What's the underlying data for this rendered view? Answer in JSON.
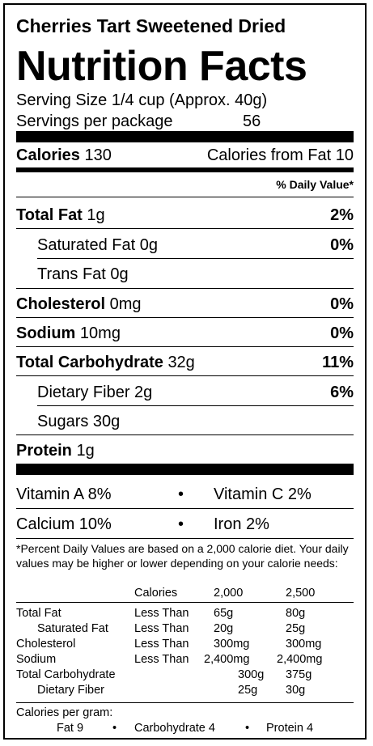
{
  "product_name": "Cherries Tart Sweetened Dried",
  "title": "Nutrition Facts",
  "serving_size": "Serving Size 1/4 cup (Approx. 40g)",
  "servings_label": "Servings per package",
  "servings_value": "56",
  "calories": {
    "label": "Calories",
    "value": "130",
    "from_fat": "Calories from Fat 10"
  },
  "daily_value_header": "% Daily Value*",
  "nutrients": {
    "total_fat": {
      "label": "Total Fat",
      "amount": "1g",
      "dv": "2%"
    },
    "saturated_fat": {
      "label": "Saturated Fat 0g",
      "dv": "0%"
    },
    "trans_fat": {
      "label": "Trans Fat 0g"
    },
    "cholesterol": {
      "label": "Cholesterol",
      "amount": "0mg",
      "dv": "0%"
    },
    "sodium": {
      "label": "Sodium",
      "amount": "10mg",
      "dv": "0%"
    },
    "total_carb": {
      "label": "Total Carbohydrate",
      "amount": "32g",
      "dv": "11%"
    },
    "fiber": {
      "label": "Dietary Fiber 2g",
      "dv": "6%"
    },
    "sugars": {
      "label": "Sugars 30g"
    },
    "protein": {
      "label": "Protein",
      "amount": "1g"
    }
  },
  "vitamins": {
    "vitamin_a": "Vitamin A 8%",
    "vitamin_c": "Vitamin C 2%",
    "calcium": "Calcium 10%",
    "iron": "Iron 2%",
    "bullet": "•"
  },
  "footnote": "*Percent Daily Values are based on a 2,000 calorie diet. Your daily values may be higher or lower depending on your calorie needs:",
  "reference_table": {
    "header": {
      "label": "Calories",
      "col1": "2,000",
      "col2": "2,500"
    },
    "rows": [
      {
        "name": "Total Fat",
        "qual": "Less Than",
        "v1": "65g",
        "v2": "80g"
      },
      {
        "name": "Saturated Fat",
        "qual": "Less Than",
        "v1": "20g",
        "v2": "25g"
      },
      {
        "name": "Cholesterol",
        "qual": "Less Than",
        "v1": "300mg",
        "v2": "300mg"
      },
      {
        "name": "Sodium",
        "qual": "Less Than",
        "v1": "2,400mg",
        "v2": "2,400mg"
      },
      {
        "name": "Total Carbohydrate",
        "qual": "",
        "v1": "300g",
        "v2": "375g"
      },
      {
        "name": "Dietary Fiber",
        "qual": "",
        "v1": "25g",
        "v2": "30g"
      }
    ]
  },
  "calories_per_gram": {
    "label": "Calories per gram:",
    "fat": "Fat 9",
    "carb": "Carbohydrate 4",
    "protein": "Protein 4",
    "bullet": "•"
  }
}
